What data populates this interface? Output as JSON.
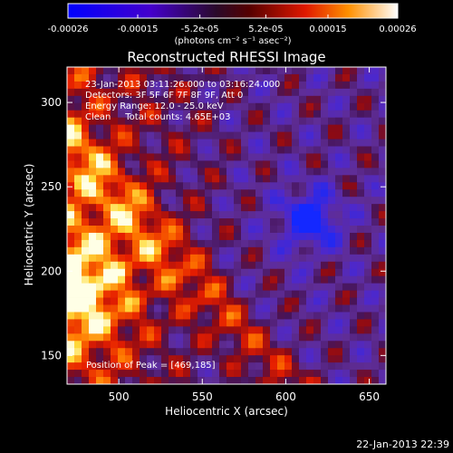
{
  "colorbar": {
    "tick_labels": [
      "-0.00026",
      "-0.00015",
      "-5.2e-05",
      "5.2e-05",
      "0.00015",
      "0.00026"
    ],
    "tick_values": [
      -0.00026,
      -0.00015,
      -5.2e-05,
      5.2e-05,
      0.00015,
      0.00026
    ],
    "range": [
      -0.00026,
      0.00026
    ],
    "unit_label": "(photons cm⁻² s⁻¹ asec⁻²)"
  },
  "chart_data": {
    "type": "heatmap",
    "title": "Reconstructed RHESSI Image",
    "xlabel": "Heliocentric X (arcsec)",
    "ylabel": "Heliocentric Y (arcsec)",
    "xlim": [
      469,
      660
    ],
    "ylim": [
      133,
      321
    ],
    "x_ticks": [
      500,
      550,
      600,
      650
    ],
    "y_ticks": [
      150,
      200,
      250,
      300
    ],
    "x_tick_labels": [
      "500",
      "550",
      "600",
      "650"
    ],
    "y_tick_labels": [
      "150",
      "200",
      "250",
      "300"
    ],
    "annotations": [
      "23-Jan-2013 03:11:26.000 to 03:16:24.000",
      "Detectors: 3F 5F 6F 7F 8F 9F, Att 0",
      "Energy Range: 12.0 - 25.0 keV",
      "Clean     Total counts: 4.65E+03"
    ],
    "peak_label": "Position of Peak = [469,185]",
    "peak": {
      "x": 469,
      "y": 185
    },
    "colors": {
      "negative": "#0000ff",
      "mid": "#5a1a8a",
      "positive": "#ff3000",
      "max": "#ffffff"
    }
  },
  "footer": {
    "timestamp": "22-Jan-2013 22:39"
  }
}
